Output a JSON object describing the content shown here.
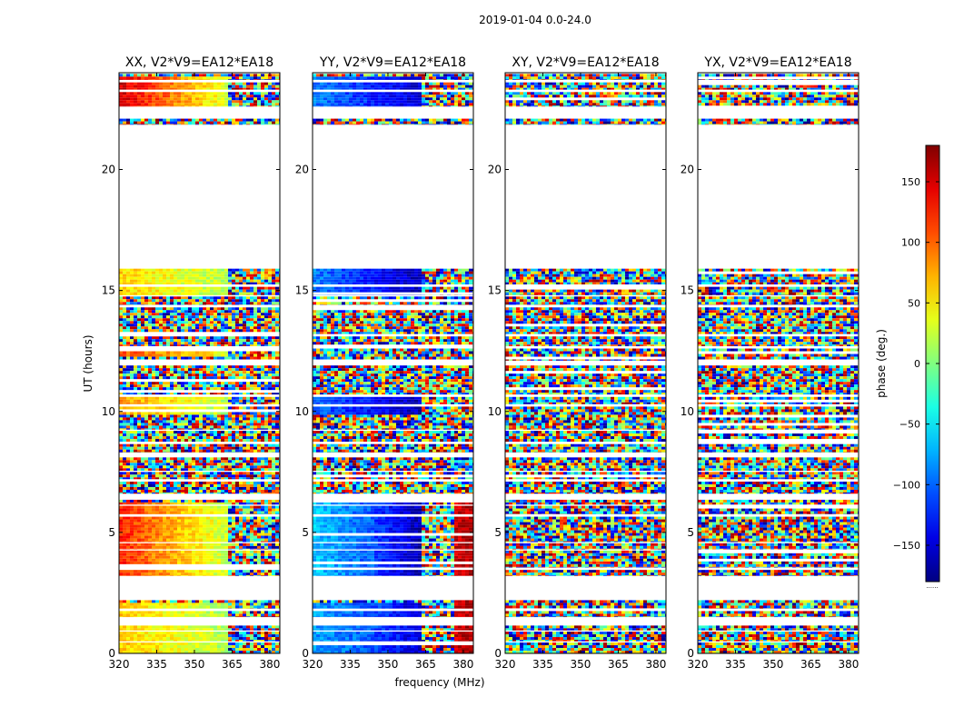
{
  "figure": {
    "suptitle": "2019-01-04 0.0-24.0",
    "colormap": "jet"
  },
  "chart_data": {
    "type": "heatmap",
    "xlabel": "frequency (MHz)",
    "ylabel": "UT (hours)",
    "xlim": [
      320,
      384
    ],
    "ylim": [
      0,
      24
    ],
    "xticks": [
      320,
      335,
      350,
      365,
      380
    ],
    "yticks": [
      0,
      5,
      10,
      15,
      20
    ],
    "colorbar": {
      "label": "phase (deg.)",
      "range": [
        -180,
        180
      ],
      "ticks": [
        -150,
        -100,
        -50,
        0,
        50,
        100,
        150
      ],
      "tick_labels": [
        "−150",
        "−100",
        "−50",
        "0",
        "50",
        "100",
        "150"
      ],
      "footer": "......"
    },
    "data_rows_hours": [
      [
        0.0,
        0.45
      ],
      [
        0.5,
        0.9
      ],
      [
        0.95,
        1.15
      ],
      [
        1.5,
        1.75
      ],
      [
        1.85,
        2.2
      ],
      [
        3.2,
        3.45
      ],
      [
        3.55,
        4.25
      ],
      [
        4.3,
        4.55
      ],
      [
        4.6,
        5.65
      ],
      [
        5.75,
        6.1
      ],
      [
        6.15,
        6.35
      ],
      [
        6.6,
        7.1
      ],
      [
        7.2,
        7.5
      ],
      [
        7.55,
        8.1
      ],
      [
        8.3,
        8.65
      ],
      [
        8.75,
        9.2
      ],
      [
        9.25,
        10.2
      ],
      [
        10.3,
        10.6
      ],
      [
        10.7,
        11.9
      ],
      [
        12.1,
        12.6
      ],
      [
        12.7,
        13.1
      ],
      [
        13.2,
        14.3
      ],
      [
        14.4,
        14.75
      ],
      [
        14.8,
        15.15
      ],
      [
        15.25,
        15.9
      ],
      [
        21.85,
        22.1
      ],
      [
        22.6,
        23.2
      ],
      [
        23.3,
        23.6
      ],
      [
        23.7,
        23.95
      ]
    ],
    "panels": [
      {
        "title": "XX, V2*V9=EA12*EA18",
        "coherent_phase_deg": [
          {
            "ut": [
              0,
              2.2
            ],
            "freq_range": [
              320,
              344
            ],
            "phase_start": 60,
            "phase_end": 40
          },
          {
            "ut": [
              0,
              2.2
            ],
            "freq_range": [
              344,
              362
            ],
            "phase_start": 40,
            "phase_end": 15
          },
          {
            "ut": [
              3.2,
              6.35
            ],
            "freq_range": [
              320,
              344
            ],
            "phase_start": 125,
            "phase_end": 65
          },
          {
            "ut": [
              3.2,
              6.35
            ],
            "freq_range": [
              344,
              362
            ],
            "phase_start": 65,
            "phase_end": 25
          },
          {
            "ut": [
              9.9,
              10.6
            ],
            "freq_range": [
              320,
              362
            ],
            "phase_start": 80,
            "phase_end": 20
          },
          {
            "ut": [
              12.3,
              12.6
            ],
            "freq_range": [
              320,
              362
            ],
            "phase_start": 110,
            "phase_end": 40
          },
          {
            "ut": [
              14.8,
              15.9
            ],
            "freq_range": [
              320,
              362
            ],
            "phase_start": 60,
            "phase_end": 20
          },
          {
            "ut": [
              22.6,
              23.95
            ],
            "freq_range": [
              320,
              362
            ],
            "phase_start": 150,
            "phase_end": 30
          }
        ]
      },
      {
        "title": "YY, V2*V9=EA12*EA18",
        "coherent_phase_deg": [
          {
            "ut": [
              0,
              2.2
            ],
            "freq_range": [
              320,
              344
            ],
            "phase_start": -80,
            "phase_end": -105
          },
          {
            "ut": [
              0,
              2.2
            ],
            "freq_range": [
              344,
              362
            ],
            "phase_start": -110,
            "phase_end": -150
          },
          {
            "ut": [
              3.2,
              6.35
            ],
            "freq_range": [
              320,
              344
            ],
            "phase_start": -65,
            "phase_end": -105
          },
          {
            "ut": [
              3.2,
              6.35
            ],
            "freq_range": [
              344,
              362
            ],
            "phase_start": -115,
            "phase_end": -160
          },
          {
            "ut": [
              0,
              6.35
            ],
            "freq_range": [
              376,
              384
            ],
            "phase_start": 150,
            "phase_end": 170
          },
          {
            "ut": [
              9.9,
              10.6
            ],
            "freq_range": [
              320,
              362
            ],
            "phase_start": -100,
            "phase_end": -160
          },
          {
            "ut": [
              14.8,
              15.9
            ],
            "freq_range": [
              320,
              362
            ],
            "phase_start": -90,
            "phase_end": -160
          },
          {
            "ut": [
              22.6,
              23.95
            ],
            "freq_range": [
              320,
              362
            ],
            "phase_start": -90,
            "phase_end": -150
          }
        ]
      },
      {
        "title": "XY, V2*V9=EA12*EA18",
        "coherent_phase_deg": []
      },
      {
        "title": "YX, V2*V9=EA12*EA18",
        "coherent_phase_deg": []
      }
    ]
  }
}
